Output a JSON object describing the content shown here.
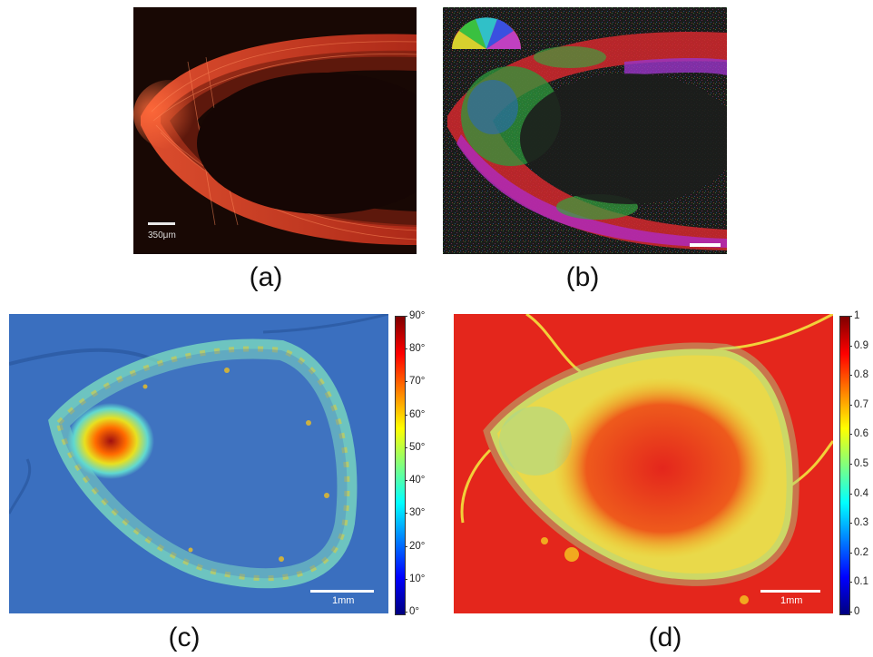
{
  "panels": {
    "a": {
      "caption": "(a)",
      "scale_bar_label": "350μm"
    },
    "b": {
      "caption": "(b)"
    },
    "c": {
      "caption": "(c)",
      "scale_bar_label": "1mm",
      "colorbar_ticks": [
        "90°",
        "80°",
        "70°",
        "60°",
        "50°",
        "40°",
        "30°",
        "20°",
        "10°",
        "0°"
      ]
    },
    "d": {
      "caption": "(d)",
      "scale_bar_label": "1mm",
      "colorbar_ticks": [
        "1",
        "0.9",
        "0.8",
        "0.7",
        "0.6",
        "0.5",
        "0.4",
        "0.3",
        "0.2",
        "0.1",
        "0"
      ]
    }
  },
  "colors": {
    "jet": [
      "#00007f",
      "#0000ff",
      "#007fff",
      "#00ffff",
      "#7fff7f",
      "#ffff00",
      "#ff7f00",
      "#ff0000",
      "#7f0000"
    ],
    "panel_a_bg": "#1a0a06",
    "panel_a_fiber": "#e8442a",
    "panel_c_bg": "#3a6fbf",
    "panel_d_bg": "#e4261c"
  }
}
